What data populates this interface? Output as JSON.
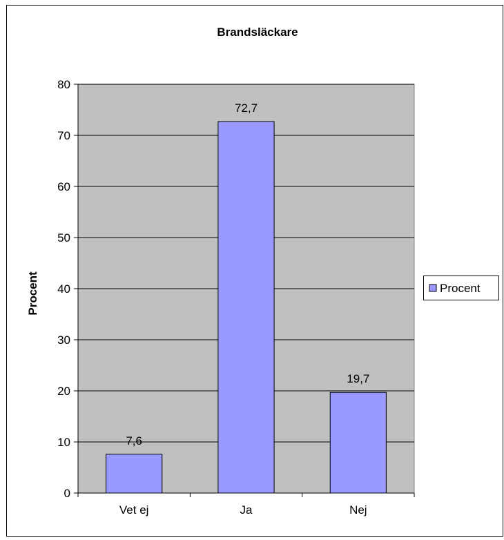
{
  "chart_data": {
    "type": "bar",
    "title": "Brandsläckare",
    "xlabel": "",
    "ylabel": "Procent",
    "categories": [
      "Vet ej",
      "Ja",
      "Nej"
    ],
    "series": [
      {
        "name": "Procent",
        "values": [
          7.6,
          72.7,
          19.7
        ],
        "value_labels": [
          "7,6",
          "72,7",
          "19,7"
        ]
      }
    ],
    "ylim": [
      0,
      80
    ],
    "yticks": [
      0,
      10,
      20,
      30,
      40,
      50,
      60,
      70,
      80
    ],
    "grid": true,
    "legend_position": "right",
    "colors": {
      "plot_background": "#c0c0c0",
      "bar_fill": "#9999ff",
      "bar_stroke": "#000000",
      "gridline": "#000000"
    }
  }
}
